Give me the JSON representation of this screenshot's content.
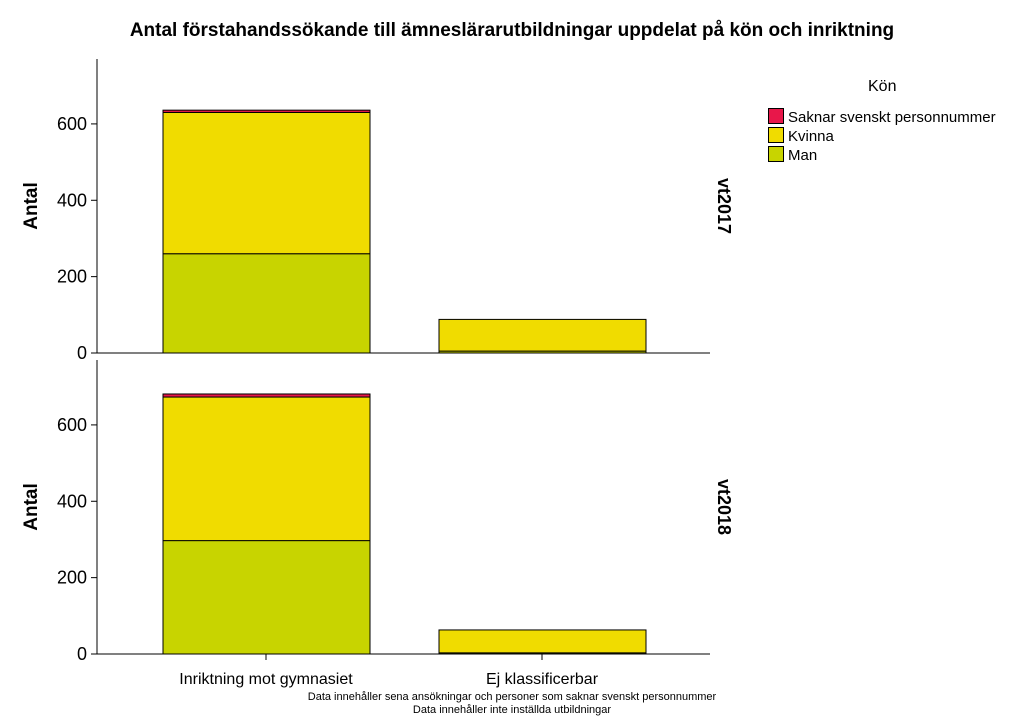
{
  "chart_data": {
    "type": "bar",
    "stacked": true,
    "title": "Antal förstahandssökande till ämneslärarutbildningar uppdelat på kön och inriktning",
    "ylabel": "Antal",
    "categories": [
      "Inriktning mot gymnasiet",
      "Ej klassificerbar"
    ],
    "ylim": [
      0,
      770
    ],
    "yticks": [
      0,
      200,
      400,
      600
    ],
    "legend": {
      "title": "Kön",
      "placement": "top-right",
      "items": [
        {
          "name": "Saknar svenskt personnummer",
          "color": "#e8174a"
        },
        {
          "name": "Kvinna",
          "color": "#f0dc00"
        },
        {
          "name": "Man",
          "color": "#c8d400"
        }
      ]
    },
    "panels": [
      {
        "label": "vt2017",
        "series": [
          {
            "name": "Man",
            "values": [
              260,
              5
            ]
          },
          {
            "name": "Kvinna",
            "values": [
              370,
              83
            ]
          },
          {
            "name": "Saknar svenskt personnummer",
            "values": [
              6,
              0
            ]
          }
        ]
      },
      {
        "label": "vt2018",
        "series": [
          {
            "name": "Man",
            "values": [
              297,
              3
            ]
          },
          {
            "name": "Kvinna",
            "values": [
              376,
              60
            ]
          },
          {
            "name": "Saknar svenskt personnummer",
            "values": [
              8,
              0
            ]
          }
        ]
      }
    ]
  },
  "footnotes": [
    "Data innehåller sena ansökningar och personer som saknar svenskt personnummer",
    "Data innehåller inte inställda utbildningar"
  ]
}
